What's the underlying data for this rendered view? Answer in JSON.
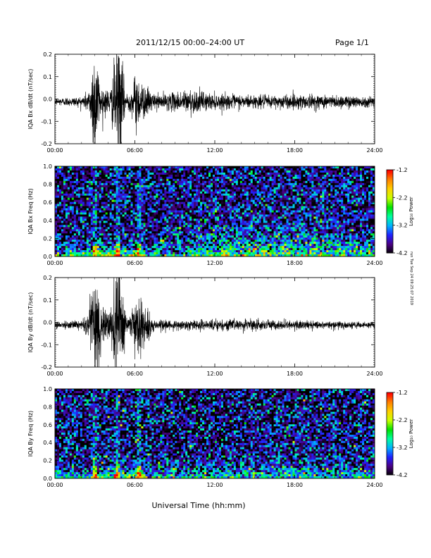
{
  "header": {
    "title": "2011/12/15  00:00–24:00 UT",
    "page": "Page 1/1"
  },
  "footer": {
    "xlabel": "Universal Time (hh:mm)",
    "side_note": "run Tue Sep 24 09:25:07 2019"
  },
  "colorbar": {
    "label": "Log₁₀ Power",
    "ticks": [
      "-1.2",
      "-2.2",
      "-3.2",
      "-4.2"
    ],
    "range": [
      -4.2,
      -1.2
    ],
    "colormap": [
      "#000000",
      "#4b0082",
      "#2020ff",
      "#00b0ff",
      "#00ffa0",
      "#00e000",
      "#c8ff00",
      "#ffd000",
      "#ff8000",
      "#ff0000"
    ]
  },
  "chart_data": [
    {
      "type": "line",
      "title": "",
      "ylabel": "IQA Bx dB/dt (nT/sec)",
      "xlabel": "",
      "x_ticks": [
        "00:00",
        "06:00",
        "12:00",
        "18:00",
        "24:00"
      ],
      "y_ticks": [
        "0.2",
        "0.1",
        "0.0",
        "-0.1",
        "-0.2"
      ],
      "ylim": [
        -0.2,
        0.2
      ],
      "xlim_hours": [
        0,
        24
      ],
      "series": [
        {
          "values_description_free": true,
          "envelope": [
            {
              "t": 0.0,
              "amp": 0.015
            },
            {
              "t": 2.0,
              "amp": 0.02
            },
            {
              "t": 2.6,
              "amp": 0.05
            },
            {
              "t": 2.9,
              "amp": 0.22
            },
            {
              "t": 3.1,
              "amp": 0.22
            },
            {
              "t": 3.4,
              "amp": 0.06
            },
            {
              "t": 4.2,
              "amp": 0.05
            },
            {
              "t": 4.6,
              "amp": 0.22
            },
            {
              "t": 4.9,
              "amp": 0.22
            },
            {
              "t": 5.3,
              "amp": 0.04
            },
            {
              "t": 5.7,
              "amp": 0.04
            },
            {
              "t": 6.1,
              "amp": 0.12
            },
            {
              "t": 6.6,
              "amp": 0.07
            },
            {
              "t": 7.5,
              "amp": 0.03
            },
            {
              "t": 9.0,
              "amp": 0.035
            },
            {
              "t": 10.0,
              "amp": 0.05
            },
            {
              "t": 12.0,
              "amp": 0.03
            },
            {
              "t": 16.0,
              "amp": 0.025
            },
            {
              "t": 18.5,
              "amp": 0.03
            },
            {
              "t": 22.0,
              "amp": 0.025
            },
            {
              "t": 24.0,
              "amp": 0.02
            }
          ]
        }
      ]
    },
    {
      "type": "heatmap",
      "title": "",
      "ylabel": "IQA Bx Freq (Hz)",
      "xlabel": "",
      "x_ticks": [
        "00:00",
        "06:00",
        "12:00",
        "18:00",
        "24:00"
      ],
      "y_ticks": [
        "1.0",
        "0.8",
        "0.6",
        "0.4",
        "0.2",
        "0.0"
      ],
      "ylim": [
        0.0,
        1.0
      ],
      "zlim": [
        -4.2,
        -1.2
      ],
      "events_hours": [
        3.0,
        4.7,
        6.3
      ]
    },
    {
      "type": "line",
      "title": "",
      "ylabel": "IQA By dB/dt (nT/sec)",
      "xlabel": "",
      "x_ticks": [
        "00:00",
        "06:00",
        "12:00",
        "18:00",
        "24:00"
      ],
      "y_ticks": [
        "0.2",
        "0.1",
        "0.0",
        "-0.1",
        "-0.2"
      ],
      "ylim": [
        -0.2,
        0.2
      ],
      "xlim_hours": [
        0,
        24
      ],
      "series": [
        {
          "envelope": [
            {
              "t": 0.0,
              "amp": 0.012
            },
            {
              "t": 2.0,
              "amp": 0.018
            },
            {
              "t": 2.6,
              "amp": 0.06
            },
            {
              "t": 2.9,
              "amp": 0.22
            },
            {
              "t": 3.2,
              "amp": 0.22
            },
            {
              "t": 3.5,
              "amp": 0.08
            },
            {
              "t": 4.2,
              "amp": 0.06
            },
            {
              "t": 4.6,
              "amp": 0.22
            },
            {
              "t": 4.9,
              "amp": 0.22
            },
            {
              "t": 5.3,
              "amp": 0.04
            },
            {
              "t": 5.8,
              "amp": 0.05
            },
            {
              "t": 6.2,
              "amp": 0.14
            },
            {
              "t": 6.7,
              "amp": 0.08
            },
            {
              "t": 7.5,
              "amp": 0.02
            },
            {
              "t": 9.5,
              "amp": 0.02
            },
            {
              "t": 12.0,
              "amp": 0.022
            },
            {
              "t": 14.0,
              "amp": 0.02
            },
            {
              "t": 18.0,
              "amp": 0.018
            },
            {
              "t": 24.0,
              "amp": 0.012
            }
          ]
        }
      ]
    },
    {
      "type": "heatmap",
      "title": "",
      "ylabel": "IQA By Freq (Hz)",
      "xlabel": "",
      "x_ticks": [
        "00:00",
        "06:00",
        "12:00",
        "18:00",
        "24:00"
      ],
      "y_ticks": [
        "1.0",
        "0.8",
        "0.6",
        "0.4",
        "0.2",
        "0.0"
      ],
      "ylim": [
        0.0,
        1.0
      ],
      "zlim": [
        -4.2,
        -1.2
      ],
      "events_hours": [
        3.0,
        4.7,
        6.3
      ]
    }
  ]
}
